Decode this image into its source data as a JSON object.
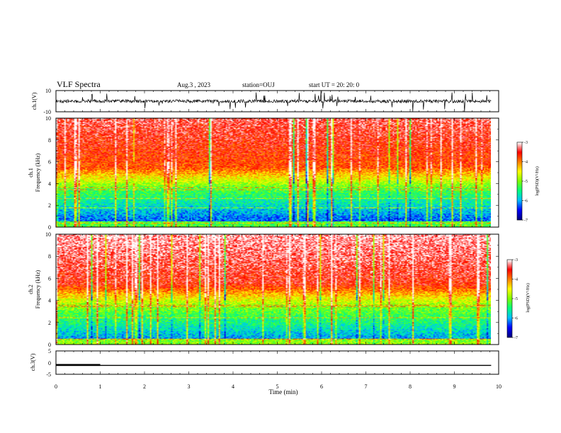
{
  "chart_data": {
    "type": "heatmap",
    "title": "VLF Spectra",
    "date": "Aug.3 , 2023",
    "station": "station=OUJ",
    "start_ut": "start UT = 20: 20: 0",
    "xlabel": "Time (min)",
    "x_ticks": [
      "0",
      "1",
      "2",
      "3",
      "4",
      "5",
      "6",
      "7",
      "8",
      "9",
      "10"
    ],
    "xlim": [
      0,
      10
    ],
    "data_end_min": 9.83,
    "panels": [
      {
        "id": "ch1-waveform",
        "type": "line",
        "ylabel": "ch.1(V)",
        "ylim": [
          -10,
          10
        ],
        "y_tick_labels": [
          "10",
          "-10"
        ],
        "baseline": 0,
        "noise_amplitude": 1.5
      },
      {
        "id": "ch1-spectrogram",
        "type": "heatmap",
        "ylabel": "ch.1 Frequency (kHz)",
        "ylabel_line1": "ch.1",
        "ylabel_line2": "Frequency (kHz)",
        "ylim": [
          0,
          10
        ],
        "y_ticks": [
          "0",
          "2",
          "4",
          "6",
          "8",
          "10"
        ],
        "colorbar": {
          "label": "log(PSD)(V²/Hz)",
          "range": [
            -7,
            -3
          ],
          "ticks": [
            "-3",
            "-4",
            "-5",
            "-6",
            "-7"
          ]
        }
      },
      {
        "id": "ch2-spectrogram",
        "type": "heatmap",
        "ylabel": "ch.2 Frequency (kHz)",
        "ylabel_line1": "ch.2",
        "ylabel_line2": "Frequency (kHz)",
        "ylim": [
          0,
          10
        ],
        "y_ticks": [
          "0",
          "2",
          "4",
          "6",
          "8",
          "10"
        ],
        "colorbar": {
          "label": "log(PSD)(V²/Hz)",
          "range": [
            -7,
            -3
          ],
          "ticks": [
            "-3",
            "-4",
            "-5",
            "-6",
            "-7"
          ]
        }
      },
      {
        "id": "ch3-waveform",
        "type": "line",
        "ylabel": "ch.3(V)",
        "ylim": [
          -5,
          5
        ],
        "y_tick_labels": [
          "5",
          "0",
          "-5"
        ],
        "baseline": -1.2,
        "pulse": {
          "x_start": 0,
          "x_end": 1.0,
          "y": -1.0
        }
      }
    ]
  },
  "colors": {
    "colormap": [
      "#00007f",
      "#0000ff",
      "#00bfff",
      "#00ff7f",
      "#7fff00",
      "#ffff00",
      "#ff7f00",
      "#ff0000",
      "#ffffff"
    ],
    "line": "#000000"
  }
}
